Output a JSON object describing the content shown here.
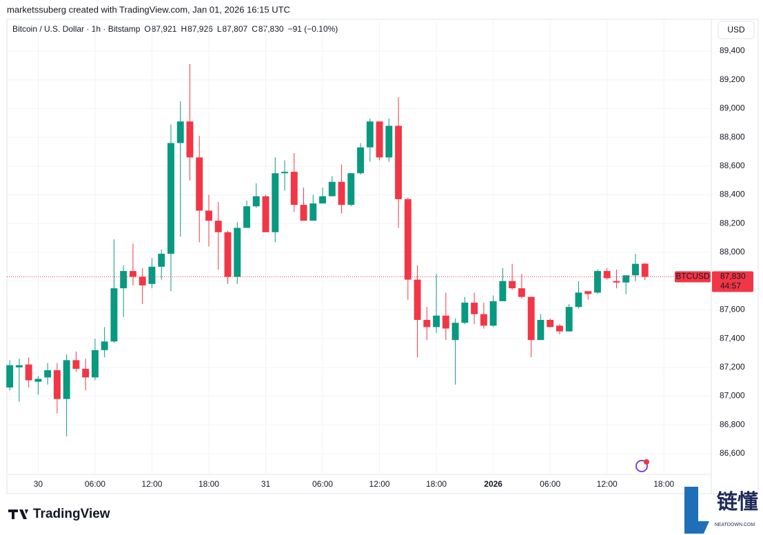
{
  "header": "marketssuberg created with TradingView.com, Jan 01, 2026 16:15 UTC",
  "symbol": "Bitcoin / U.S. Dollar · 1h · Bitstamp",
  "ohlc_legend": {
    "o_label": "O",
    "o": "87,921",
    "h_label": "H",
    "h": "87,926",
    "l_label": "L",
    "l": "87,807",
    "c_label": "C",
    "c": "87,830",
    "change": "−91 (−0.10%)"
  },
  "currency_button": "USD",
  "price_tag": {
    "symbol": "BTCUSD",
    "countdown": "44:57"
  },
  "brand": "TradingView",
  "watermark": {
    "name": "链懂",
    "site": "NEATDOWN.COM"
  },
  "chart_data": {
    "type": "candlestick",
    "up_color": "#089981",
    "down_color": "#f23645",
    "grid": true,
    "last_price": {
      "value": 87830,
      "label": "87,830"
    },
    "xlim": [
      -0.3,
      74
    ],
    "xticks": [
      {
        "value": 3,
        "label": "30"
      },
      {
        "value": 9,
        "label": "06:00"
      },
      {
        "value": 15,
        "label": "12:00"
      },
      {
        "value": 21,
        "label": "18:00"
      },
      {
        "value": 27,
        "label": "31"
      },
      {
        "value": 33,
        "label": "06:00"
      },
      {
        "value": 39,
        "label": "12:00"
      },
      {
        "value": 45,
        "label": "18:00"
      },
      {
        "value": 51,
        "label": "2026"
      },
      {
        "value": 57,
        "label": "06:00"
      },
      {
        "value": 63,
        "label": "12:00"
      },
      {
        "value": 69,
        "label": "18:00"
      }
    ],
    "ylim": [
      86456,
      89611
    ],
    "yticks": [
      {
        "value": 86600,
        "label": "86,600"
      },
      {
        "value": 86800,
        "label": "86,800"
      },
      {
        "value": 87000,
        "label": "87,000"
      },
      {
        "value": 87200,
        "label": "87,200"
      },
      {
        "value": 87400,
        "label": "87,400"
      },
      {
        "value": 87600,
        "label": "87,600"
      },
      {
        "value": 87800,
        "label": "87,800"
      },
      {
        "value": 88000,
        "label": "88,000"
      },
      {
        "value": 88200,
        "label": "88,200"
      },
      {
        "value": 88400,
        "label": "88,400"
      },
      {
        "value": 88600,
        "label": "88,600"
      },
      {
        "value": 88800,
        "label": "88,800"
      },
      {
        "value": 89000,
        "label": "89,000"
      },
      {
        "value": 89200,
        "label": "89,200"
      },
      {
        "value": 89400,
        "label": "89,400"
      }
    ],
    "open": [
      87060,
      87200,
      87220,
      87100,
      87130,
      87180,
      86980,
      87250,
      87190,
      87130,
      87320,
      87380,
      87750,
      87870,
      87830,
      87780,
      87900,
      87990,
      88760,
      88910,
      88660,
      88290,
      88220,
      88140,
      87830,
      88170,
      88320,
      88390,
      88140,
      88550,
      88560,
      88330,
      88220,
      88340,
      88390,
      88490,
      88330,
      88550,
      88730,
      88910,
      88660,
      88880,
      88370,
      87810,
      87530,
      87480,
      87560,
      87390,
      87510,
      87650,
      87570,
      87490,
      87660,
      87800,
      87750,
      87690,
      87390,
      87530,
      87490,
      87450,
      87620,
      87730,
      87720,
      87870,
      87800,
      87790,
      87840,
      87921
    ],
    "high": [
      87250,
      87260,
      87270,
      87140,
      87230,
      87230,
      87290,
      87310,
      87260,
      87400,
      87480,
      88090,
      87910,
      88060,
      87890,
      87960,
      88020,
      88890,
      89050,
      89310,
      88810,
      88400,
      88350,
      88150,
      88210,
      88360,
      88480,
      88400,
      88660,
      88640,
      88690,
      88450,
      88400,
      88450,
      88530,
      88610,
      88550,
      88760,
      88930,
      88910,
      88930,
      89080,
      88380,
      87910,
      87620,
      87850,
      87720,
      87540,
      87690,
      87720,
      87650,
      87700,
      87890,
      87920,
      87850,
      87690,
      87570,
      87540,
      87500,
      87640,
      87800,
      87730,
      87880,
      87890,
      87880,
      87840,
      87990,
      87926
    ],
    "low": [
      87040,
      86960,
      87060,
      87010,
      87080,
      86880,
      86720,
      87170,
      87040,
      87110,
      87270,
      87370,
      87550,
      87770,
      87640,
      87750,
      87810,
      87730,
      88110,
      88500,
      88070,
      88040,
      87880,
      87780,
      87780,
      88170,
      88310,
      88140,
      88070,
      88430,
      88280,
      88220,
      88220,
      88340,
      88390,
      88270,
      88320,
      88540,
      88630,
      88640,
      88630,
      88170,
      87670,
      87270,
      87390,
      87440,
      87390,
      87080,
      87500,
      87500,
      87470,
      87480,
      87660,
      87740,
      87680,
      87270,
      87390,
      87480,
      87430,
      87450,
      87610,
      87670,
      87710,
      87810,
      87750,
      87710,
      87800,
      87807
    ],
    "close": [
      87215,
      87215,
      87110,
      87120,
      87180,
      86980,
      87250,
      87190,
      87130,
      87320,
      87380,
      87750,
      87870,
      87830,
      87770,
      87900,
      87990,
      88760,
      88910,
      88660,
      88290,
      88220,
      88140,
      87830,
      88170,
      88320,
      88390,
      88140,
      88550,
      88560,
      88330,
      88220,
      88340,
      88390,
      88490,
      88330,
      88550,
      88730,
      88910,
      88660,
      88880,
      88370,
      87810,
      87530,
      87480,
      87560,
      87470,
      87510,
      87650,
      87570,
      87490,
      87660,
      87800,
      87750,
      87690,
      87390,
      87530,
      87480,
      87450,
      87620,
      87720,
      87710,
      87870,
      87820,
      87790,
      87840,
      87920,
      87830
    ]
  }
}
